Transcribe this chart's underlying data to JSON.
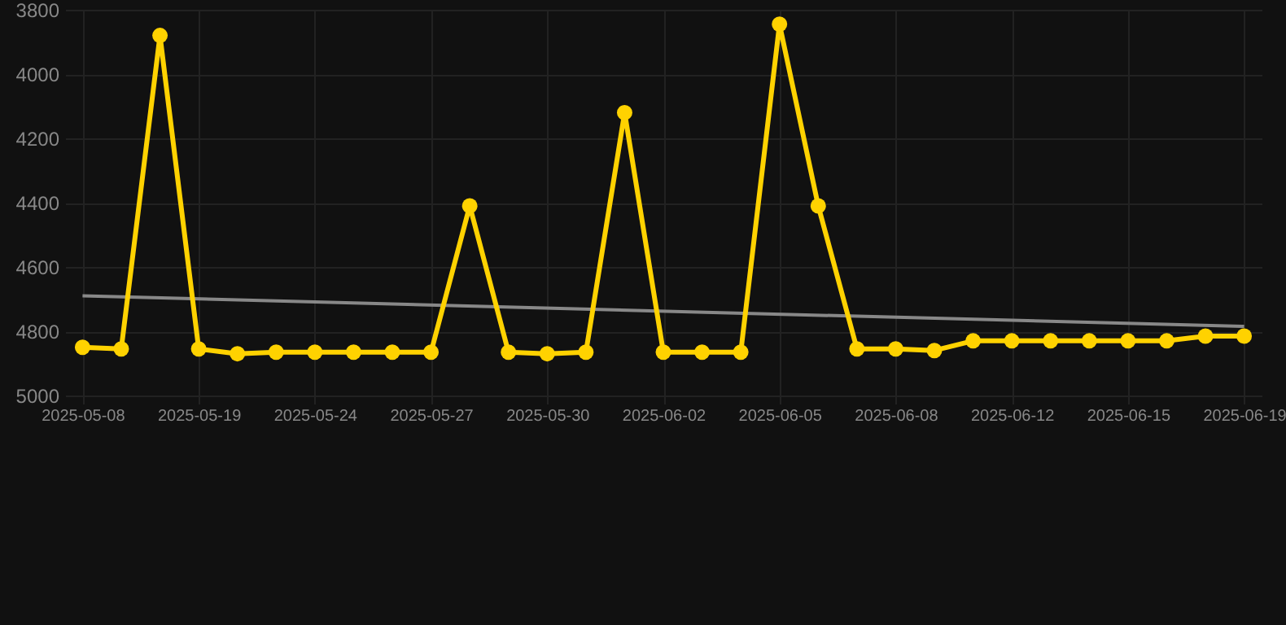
{
  "chart_data": {
    "type": "line",
    "categories": [
      "2025-05-08",
      null,
      null,
      "2025-05-19",
      null,
      null,
      "2025-05-24",
      null,
      null,
      "2025-05-27",
      null,
      null,
      "2025-05-30",
      null,
      null,
      "2025-06-02",
      null,
      null,
      "2025-06-05",
      null,
      null,
      "2025-06-08",
      null,
      null,
      "2025-06-12",
      null,
      null,
      "2025-06-15",
      null,
      null,
      "2025-06-19"
    ],
    "series": [
      {
        "color": "#ffd200",
        "marker": "circle",
        "values": [
          4850,
          4855,
          3880,
          4855,
          4870,
          4865,
          4865,
          4865,
          4865,
          4865,
          4410,
          4865,
          4870,
          4865,
          4120,
          4865,
          4865,
          4865,
          3845,
          4410,
          4855,
          4855,
          4860,
          4830,
          4830,
          4830,
          4830,
          4830,
          4830,
          4815,
          4815
        ]
      },
      {
        "type": "line",
        "color": "#888888",
        "marker": "none",
        "values": [
          4690,
          null,
          null,
          null,
          null,
          null,
          null,
          null,
          null,
          null,
          null,
          null,
          null,
          null,
          null,
          null,
          null,
          null,
          null,
          null,
          null,
          null,
          null,
          null,
          null,
          null,
          null,
          null,
          null,
          null,
          4785
        ]
      }
    ],
    "ylim": [
      5000,
      3800
    ],
    "yticks": [
      3800,
      4000,
      4200,
      4400,
      4600,
      4800,
      5000
    ],
    "grid": true,
    "line_style": "solid"
  }
}
